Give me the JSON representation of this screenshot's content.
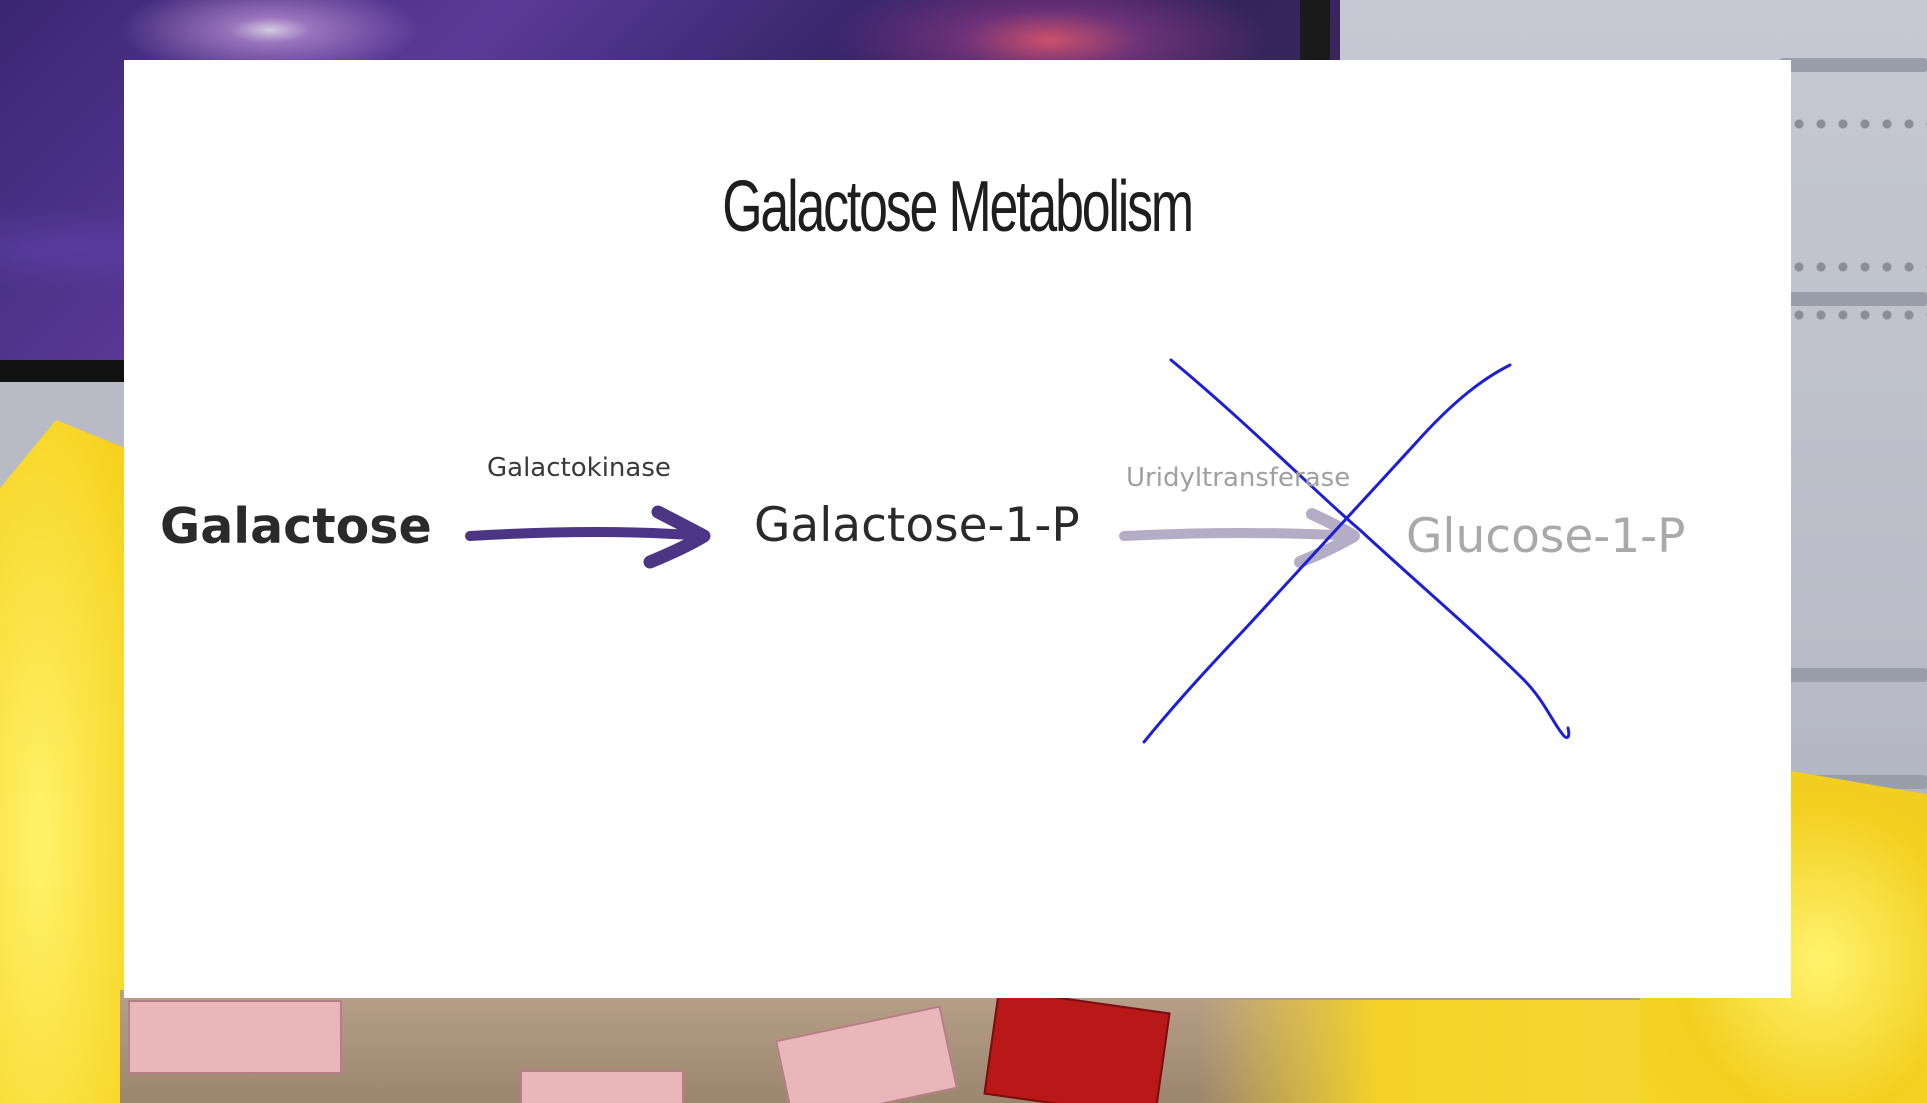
{
  "slide": {
    "title": "Galactose Metabolism"
  },
  "pathway": {
    "nodes": [
      {
        "id": "galactose",
        "label": "Galactose",
        "emphasis": "bold"
      },
      {
        "id": "galactose_1_p",
        "label": "Galactose-1-P",
        "emphasis": "normal"
      },
      {
        "id": "glucose_1_p",
        "label": "Glucose-1-P",
        "emphasis": "faded"
      }
    ],
    "edges": [
      {
        "from": "galactose",
        "to": "galactose_1_p",
        "enzyme": "Galactokinase",
        "color": "#4b3584"
      },
      {
        "from": "galactose_1_p",
        "to": "glucose_1_p",
        "enzyme": "Uridyltransferase",
        "color": "#b3aec5"
      }
    ],
    "blocked_step": {
      "enzyme": "Uridyltransferase",
      "mark": "cross",
      "mark_color": "#1c1fd6"
    }
  },
  "colors": {
    "node_text": "#2a2a2a",
    "faded_text": "#a9a9a9",
    "slide_background": "#ffffff"
  }
}
